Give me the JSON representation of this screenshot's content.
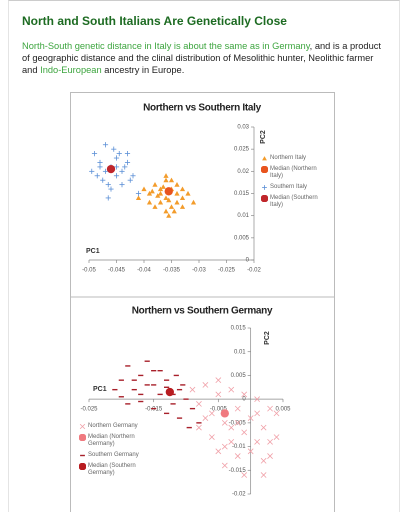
{
  "header": {
    "title": "North and South Italians Are Genetically Close"
  },
  "paragraph": [
    {
      "text": "North-South genetic distance in Italy is about the same as in Germany",
      "link": true
    },
    {
      "text": ", and is a product of geographic distance and the clinal distribution of Mesolithic hunter, Neolithic farmer and ",
      "link": false
    },
    {
      "text": "Indo-European",
      "link": true
    },
    {
      "text": " ancestry in Europe.",
      "link": false
    }
  ],
  "chart_data": [
    {
      "type": "scatter",
      "title": "Northern vs Southern Italy",
      "x_label": "PC1",
      "y_label": "PC2",
      "xlim": [
        -0.05,
        -0.02
      ],
      "xticks": [
        -0.05,
        -0.045,
        -0.04,
        -0.035,
        -0.03,
        -0.025,
        -0.02
      ],
      "ylim": [
        0,
        0.03
      ],
      "yticks": [
        0,
        0.005,
        0.01,
        0.015,
        0.02,
        0.025,
        0.03
      ],
      "series": [
        {
          "name": "Northern Italy",
          "color": "#f39c2b",
          "marker": "triangle",
          "x": [
            -0.039,
            -0.038,
            -0.037,
            -0.036,
            -0.035,
            -0.034,
            -0.033,
            -0.036,
            -0.037,
            -0.038,
            -0.035,
            -0.034,
            -0.036,
            -0.037,
            -0.035,
            -0.034,
            -0.033,
            -0.039,
            -0.04,
            -0.032,
            -0.0365,
            -0.0355,
            -0.0375,
            -0.0345,
            -0.0385,
            -0.041,
            -0.031,
            -0.0355,
            -0.036,
            -0.033
          ],
          "values": [
            0.015,
            0.017,
            0.016,
            0.014,
            0.016,
            0.015,
            0.014,
            0.019,
            0.013,
            0.012,
            0.012,
            0.013,
            0.011,
            0.015,
            0.018,
            0.017,
            0.012,
            0.013,
            0.016,
            0.015,
            0.0165,
            0.0135,
            0.0145,
            0.011,
            0.0155,
            0.014,
            0.013,
            0.01,
            0.018,
            0.016
          ]
        },
        {
          "name": "Median (Northern Italy)",
          "color": "#e8541e",
          "marker": "circle",
          "x": [
            -0.0355
          ],
          "values": [
            0.0155
          ]
        },
        {
          "name": "Southern Italy",
          "color": "#5b8fd6",
          "marker": "plus",
          "x": [
            -0.049,
            -0.048,
            -0.047,
            -0.046,
            -0.045,
            -0.044,
            -0.043,
            -0.042,
            -0.0485,
            -0.0475,
            -0.0465,
            -0.0455,
            -0.0445,
            -0.0435,
            -0.047,
            -0.046,
            -0.045,
            -0.044,
            -0.048,
            -0.0425,
            -0.041,
            -0.0465,
            -0.045,
            -0.043,
            -0.0495
          ],
          "values": [
            0.024,
            0.022,
            0.026,
            0.021,
            0.023,
            0.02,
            0.022,
            0.019,
            0.019,
            0.018,
            0.017,
            0.025,
            0.024,
            0.021,
            0.02,
            0.016,
            0.019,
            0.017,
            0.021,
            0.018,
            0.015,
            0.014,
            0.021,
            0.024,
            0.02
          ]
        },
        {
          "name": "Median (Southern Italy)",
          "color": "#c0262b",
          "marker": "circle",
          "x": [
            -0.046
          ],
          "values": [
            0.0205
          ]
        }
      ]
    },
    {
      "type": "scatter",
      "title": "Northern vs Southern Germany",
      "x_label": "PC1",
      "y_label": "PC2",
      "xlim": [
        -0.025,
        0.005
      ],
      "xticks": [
        -0.025,
        -0.015,
        -0.005,
        0.005
      ],
      "ylim": [
        -0.02,
        0.015
      ],
      "yticks": [
        -0.02,
        -0.015,
        -0.01,
        -0.005,
        0,
        0.005,
        0.01,
        0.015
      ],
      "series": [
        {
          "name": "Northern Germany",
          "color": "#f0a0a8",
          "marker": "x",
          "x": [
            -0.009,
            -0.008,
            -0.007,
            -0.006,
            -0.005,
            -0.004,
            -0.003,
            -0.002,
            -0.001,
            0,
            0.001,
            0.002,
            0.003,
            0.004,
            -0.006,
            -0.004,
            -0.002,
            0,
            0.002,
            -0.005,
            -0.003,
            -0.001,
            0.001,
            0.003,
            -0.007,
            -0.004,
            -0.001,
            0.002,
            0.004,
            -0.008,
            -0.002,
            0.001,
            -0.005,
            0.003,
            -0.003
          ],
          "values": [
            0.002,
            -0.001,
            0.003,
            -0.003,
            0.001,
            -0.005,
            0.002,
            -0.002,
            -0.007,
            -0.004,
            0,
            -0.006,
            -0.009,
            -0.003,
            -0.008,
            -0.01,
            -0.012,
            -0.011,
            -0.013,
            0.004,
            -0.006,
            0.001,
            -0.009,
            -0.012,
            -0.004,
            -0.014,
            -0.016,
            -0.016,
            -0.008,
            -0.006,
            -0.005,
            -0.003,
            -0.011,
            -0.002,
            -0.009
          ]
        },
        {
          "name": "Median (Northern Germany)",
          "color": "#f07a80",
          "marker": "circle",
          "x": [
            -0.004
          ],
          "values": [
            -0.003
          ]
        },
        {
          "name": "Southern Germany",
          "color": "#a8202a",
          "marker": "dash",
          "x": [
            -0.02,
            -0.019,
            -0.018,
            -0.017,
            -0.016,
            -0.015,
            -0.014,
            -0.013,
            -0.012,
            -0.011,
            -0.01,
            -0.019,
            -0.017,
            -0.015,
            -0.013,
            -0.011,
            -0.009,
            -0.018,
            -0.016,
            -0.014,
            -0.012,
            -0.0105,
            -0.008,
            -0.015,
            -0.013,
            -0.017,
            -0.021,
            -0.02,
            -0.0095,
            -0.0115
          ],
          "values": [
            0.004,
            0.007,
            0.002,
            0.005,
            0.008,
            0.003,
            0.006,
            0.004,
            0.001,
            0.002,
            0,
            -0.001,
            0.001,
            -0.002,
            -0.003,
            -0.004,
            -0.002,
            0.004,
            0.003,
            0.001,
            -0.001,
            0.003,
            -0.005,
            0.006,
            0.0025,
            -0.0005,
            0.002,
            0.0005,
            -0.006,
            0.005
          ]
        },
        {
          "name": "Median (Southern Germany)",
          "color": "#b81c20",
          "marker": "circle",
          "x": [
            -0.0125
          ],
          "values": [
            0.0015
          ]
        }
      ]
    }
  ]
}
